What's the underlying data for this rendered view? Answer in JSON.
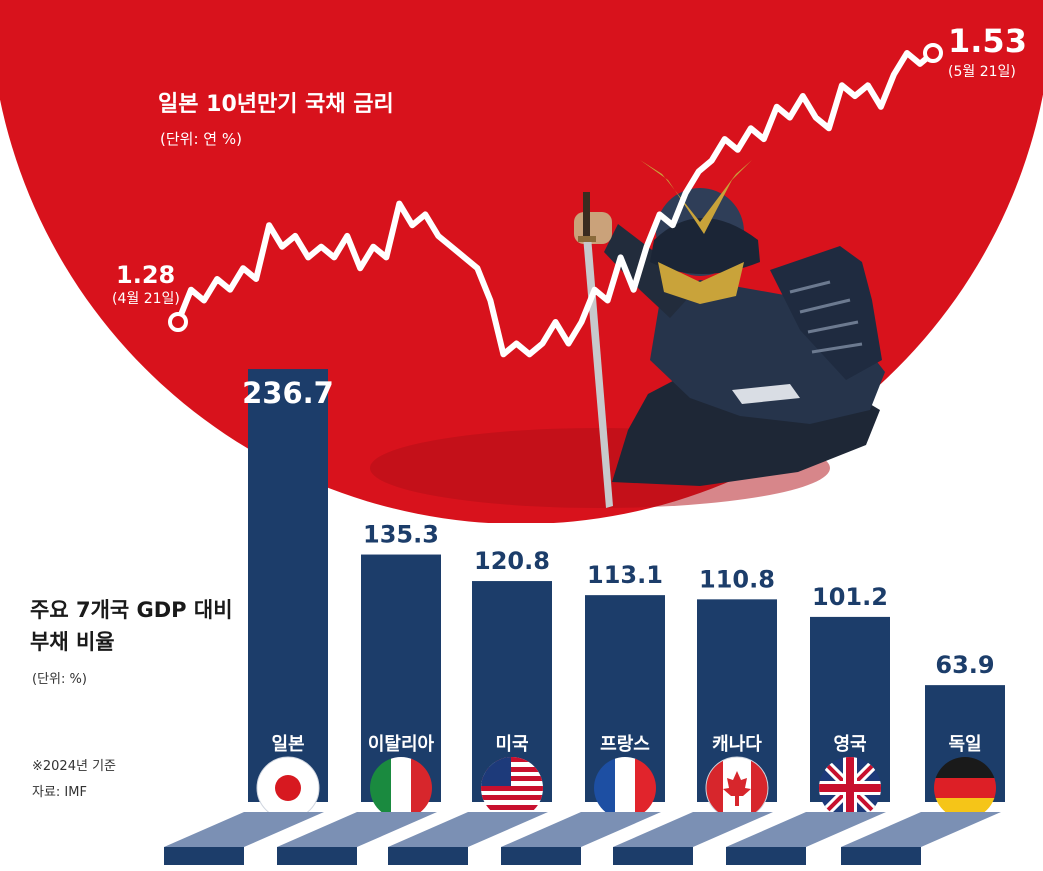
{
  "chart_data": [
    {
      "type": "line",
      "title": "일본 10년만기 국채 금리",
      "unit": "(단위: 연 %)",
      "start_label": {
        "value": "1.28",
        "date": "(4월 21일)"
      },
      "end_label": {
        "value": "1.53",
        "date": "(5월 21일)"
      },
      "values": [
        1.28,
        1.31,
        1.3,
        1.32,
        1.31,
        1.33,
        1.32,
        1.37,
        1.35,
        1.36,
        1.34,
        1.35,
        1.34,
        1.36,
        1.33,
        1.35,
        1.34,
        1.39,
        1.37,
        1.38,
        1.36,
        1.35,
        1.34,
        1.33,
        1.3,
        1.25,
        1.26,
        1.25,
        1.26,
        1.28,
        1.26,
        1.28,
        1.31,
        1.3,
        1.34,
        1.31,
        1.35,
        1.38,
        1.37,
        1.4,
        1.42,
        1.43,
        1.45,
        1.44,
        1.46,
        1.45,
        1.48,
        1.47,
        1.49,
        1.47,
        1.46,
        1.5,
        1.49,
        1.5,
        1.48,
        1.51,
        1.53,
        1.52,
        1.53
      ],
      "colors": {
        "background": "#d8121c",
        "line": "#ffffff"
      }
    },
    {
      "type": "bar",
      "title": "주요 7개국 GDP 대비 부채 비율",
      "unit": "(단위: %)",
      "note": "※2024년 기준",
      "source": "자료: IMF",
      "categories": [
        "일본",
        "이탈리아",
        "미국",
        "프랑스",
        "캐나다",
        "영국",
        "독일"
      ],
      "values": [
        236.7,
        135.3,
        120.8,
        113.1,
        110.8,
        101.2,
        63.9
      ],
      "value_labels": [
        "236.7",
        "135.3",
        "120.8",
        "113.1",
        "110.8",
        "101.2",
        "63.9"
      ],
      "flags": [
        "japan-flag-icon",
        "italy-flag-icon",
        "usa-flag-icon",
        "france-flag-icon",
        "canada-flag-icon",
        "uk-flag-icon",
        "germany-flag-icon"
      ],
      "colors": {
        "bar": "#1c3d6a",
        "value_text": "#1c3d6a",
        "platform": "#7b90b4"
      }
    }
  ]
}
